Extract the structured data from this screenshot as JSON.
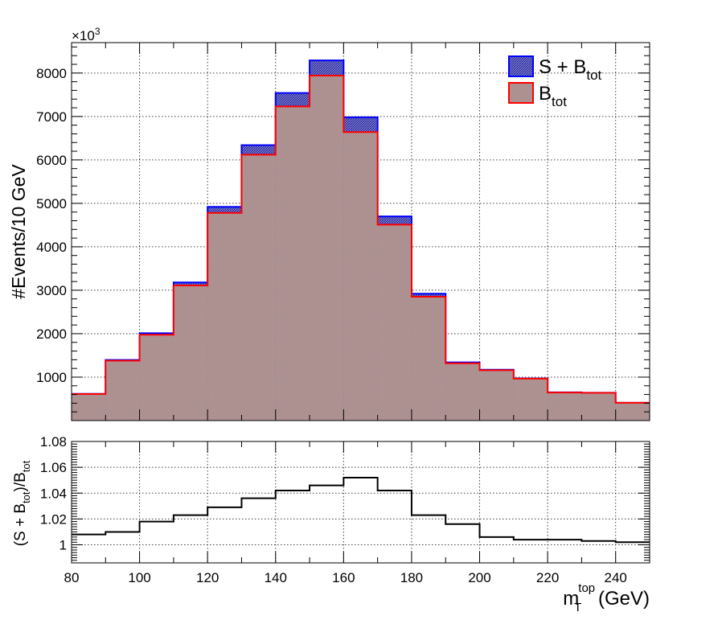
{
  "chart_data": [
    {
      "type": "bar",
      "ylabel": "#Events/10 GeV",
      "y_multiplier_label": "×10",
      "y_multiplier_exponent": "3",
      "ylim": [
        0,
        8700
      ],
      "xlim": [
        80,
        250
      ],
      "yticks": [
        1000,
        2000,
        3000,
        4000,
        5000,
        6000,
        7000,
        8000
      ],
      "xticks": [
        80,
        100,
        120,
        140,
        160,
        180,
        200,
        220,
        240
      ],
      "grid": true,
      "legend_position": "top-right",
      "bin_edges": [
        80,
        90,
        100,
        110,
        120,
        130,
        140,
        150,
        160,
        170,
        180,
        190,
        200,
        210,
        220,
        230,
        240,
        250
      ],
      "legend": [
        {
          "main": "S + B",
          "sub": "tot",
          "color": "#0000ff"
        },
        {
          "main": "B",
          "sub": "tot",
          "color": "#ff0000"
        }
      ],
      "series": [
        {
          "name": "S + B_tot",
          "color": "#0000ff",
          "fill": "#7f7f7f",
          "values": [
            615,
            1395,
            2010,
            3180,
            4920,
            6340,
            7540,
            8290,
            6980,
            4700,
            2920,
            1340,
            1170,
            970,
            650,
            640,
            410
          ]
        },
        {
          "name": "B_tot",
          "color": "#ff0000",
          "fill": "#a3a3a3",
          "values": [
            610,
            1380,
            1975,
            3110,
            4780,
            6120,
            7230,
            7940,
            6640,
            4510,
            2850,
            1320,
            1160,
            965,
            645,
            638,
            409
          ]
        }
      ]
    },
    {
      "type": "line",
      "ylabel_parts": [
        "(S + B",
        "tot",
        ")/B",
        "tot"
      ],
      "xlabel_main": "m",
      "xlabel_sub": "T",
      "xlabel_sup": "top",
      "xlabel_unit": " (GeV)",
      "ylim": [
        0.986,
        1.08
      ],
      "xlim": [
        80,
        250
      ],
      "yticks": [
        1,
        1.02,
        1.04,
        1.06,
        1.08
      ],
      "ytick_labels": [
        "1",
        "1.02",
        "1.04",
        "1.06",
        "1.08"
      ],
      "xticks": [
        80,
        100,
        120,
        140,
        160,
        180,
        200,
        220,
        240
      ],
      "grid": true,
      "bin_edges": [
        80,
        90,
        100,
        110,
        120,
        130,
        140,
        150,
        160,
        170,
        180,
        190,
        200,
        210,
        220,
        230,
        240,
        250
      ],
      "values": [
        1.008,
        1.01,
        1.018,
        1.023,
        1.029,
        1.036,
        1.042,
        1.046,
        1.052,
        1.042,
        1.023,
        1.016,
        1.006,
        1.004,
        1.004,
        1.003,
        1.002
      ]
    }
  ]
}
